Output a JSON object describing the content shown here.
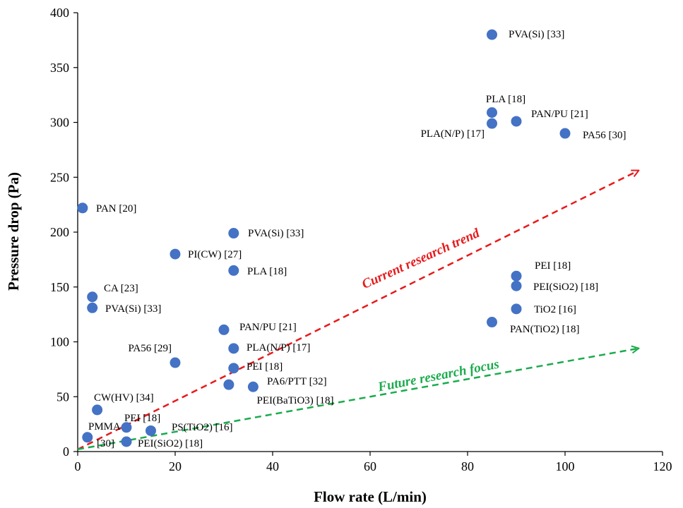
{
  "colors": {
    "point": "#4472C4",
    "current_trend": "#E8191B",
    "future_trend": "#1AAB4C",
    "axis": "#000000"
  },
  "chart_data": {
    "type": "scatter",
    "xlabel": "Flow rate (L/min)",
    "ylabel": "Pressure drop (Pa)",
    "xlim": [
      0,
      120
    ],
    "ylim": [
      0,
      400
    ],
    "xticks": [
      0,
      20,
      40,
      60,
      80,
      100,
      120
    ],
    "yticks": [
      0,
      50,
      100,
      150,
      200,
      250,
      300,
      350,
      400
    ],
    "grid": false,
    "points": [
      {
        "x": 85,
        "y": 380,
        "label": "PVA(Si) [33]"
      },
      {
        "x": 85,
        "y": 309,
        "label": "PLA [18]"
      },
      {
        "x": 85,
        "y": 299,
        "label": "PLA(N/P) [17]"
      },
      {
        "x": 90,
        "y": 301,
        "label": "PAN/PU [21]"
      },
      {
        "x": 100,
        "y": 290,
        "label": "PA56 [30]"
      },
      {
        "x": 1,
        "y": 222,
        "label": "PAN [20]"
      },
      {
        "x": 32,
        "y": 199,
        "label": "PVA(Si) [33]"
      },
      {
        "x": 20,
        "y": 180,
        "label": "PI(CW) [27]"
      },
      {
        "x": 32,
        "y": 165,
        "label": "PLA [18]"
      },
      {
        "x": 3,
        "y": 141,
        "label": "CA [23]"
      },
      {
        "x": 3,
        "y": 131,
        "label": "PVA(Si) [33]"
      },
      {
        "x": 90,
        "y": 160,
        "label": "PEI [18]"
      },
      {
        "x": 90,
        "y": 151,
        "label": "PEI(SiO2) [18]"
      },
      {
        "x": 90,
        "y": 130,
        "label": "TiO2 [16]"
      },
      {
        "x": 85,
        "y": 118,
        "label": "PAN(TiO2) [18]"
      },
      {
        "x": 30,
        "y": 111,
        "label": "PAN/PU [21]"
      },
      {
        "x": 32,
        "y": 94,
        "label": "PLA(N/P) [17]"
      },
      {
        "x": 20,
        "y": 81,
        "label": "PA56 [29]"
      },
      {
        "x": 32,
        "y": 76,
        "label": "PEI [18]"
      },
      {
        "x": 31,
        "y": 61,
        "label": "PEI(BaTiO3) [18]"
      },
      {
        "x": 36,
        "y": 59,
        "label": "PA6/PTT [32]"
      },
      {
        "x": 4,
        "y": 38,
        "label": "CW(HV) [34]"
      },
      {
        "x": 10,
        "y": 22,
        "label": "PEI [18]"
      },
      {
        "x": 15,
        "y": 19,
        "label": "PS(TiO2) [16]"
      },
      {
        "x": 2,
        "y": 13,
        "label": "PMMA [30]"
      },
      {
        "x": 10,
        "y": 9,
        "label": "PEI(SiO2) [18]"
      }
    ],
    "annotations": [
      {
        "text": "Current research trend",
        "from": [
          0,
          2
        ],
        "to": [
          115,
          256
        ]
      },
      {
        "text": "Future research focus",
        "from": [
          0,
          2
        ],
        "to": [
          115,
          94
        ]
      }
    ]
  }
}
